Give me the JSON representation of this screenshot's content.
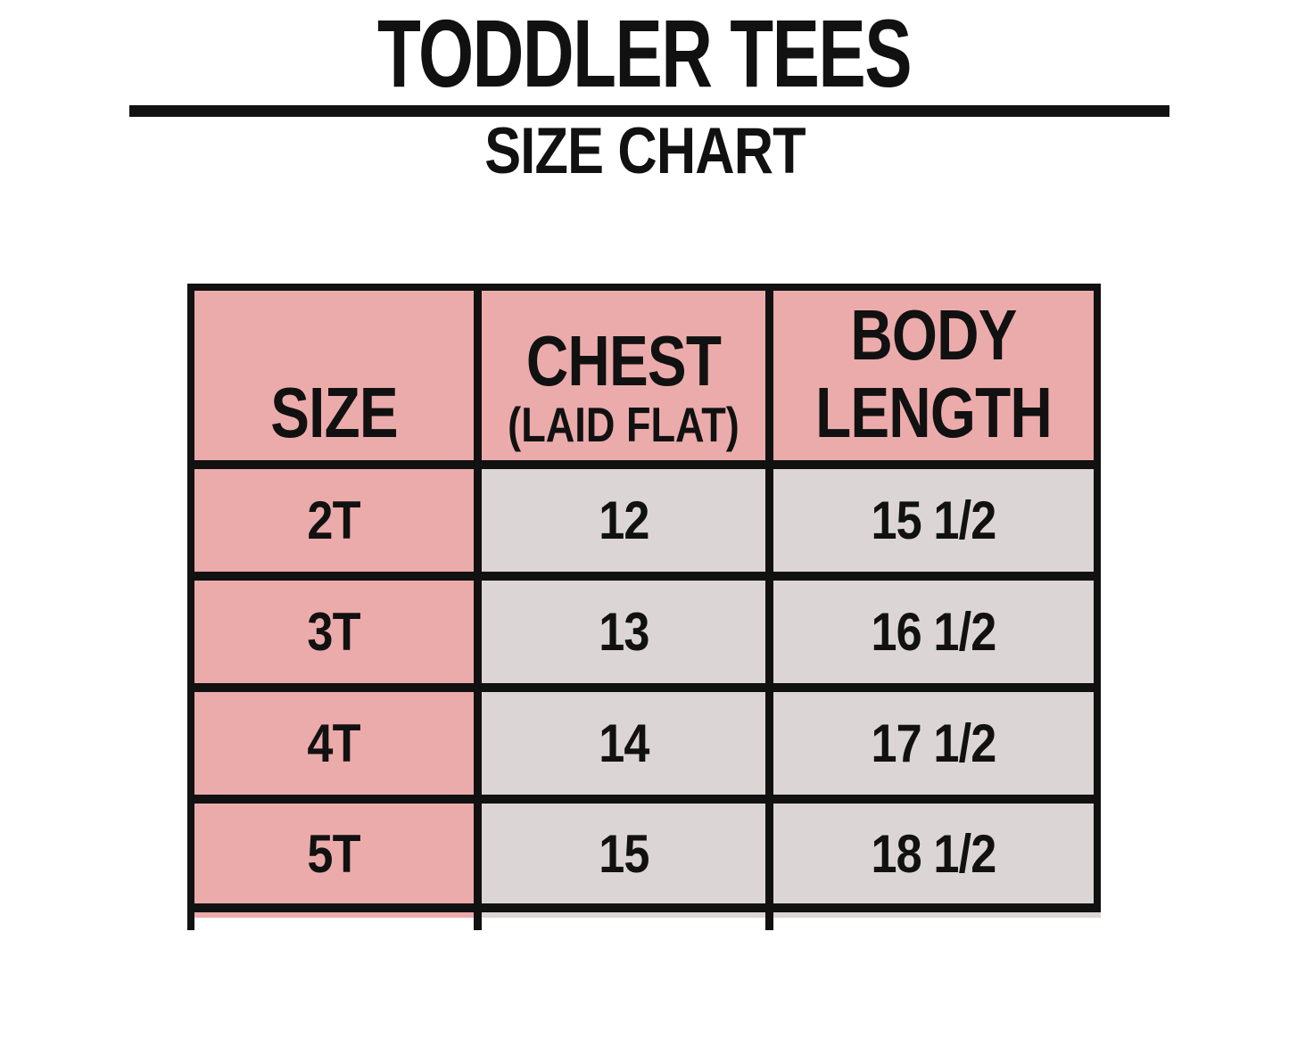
{
  "colors": {
    "header_bg": "#ecabab",
    "cell_bg": "#dcd5d5",
    "border": "#111111",
    "background": "#ffffff"
  },
  "chart_data": {
    "type": "table",
    "title": "TODDLER TEES",
    "subtitle": "SIZE CHART",
    "columns": [
      {
        "label": "SIZE",
        "sub": ""
      },
      {
        "label": "CHEST",
        "sub": "(LAID FLAT)"
      },
      {
        "label": "BODY LENGTH",
        "sub": ""
      }
    ],
    "rows": [
      [
        "2T",
        "12",
        "15 1/2"
      ],
      [
        "3T",
        "13",
        "16 1/2"
      ],
      [
        "4T",
        "14",
        "17 1/2"
      ],
      [
        "5T",
        "15",
        "18 1/2"
      ]
    ],
    "notes": "Header row and SIZE column have pink background; measurement cells are light gray; table is cropped at the bottom revealing a sliver of a further row"
  }
}
